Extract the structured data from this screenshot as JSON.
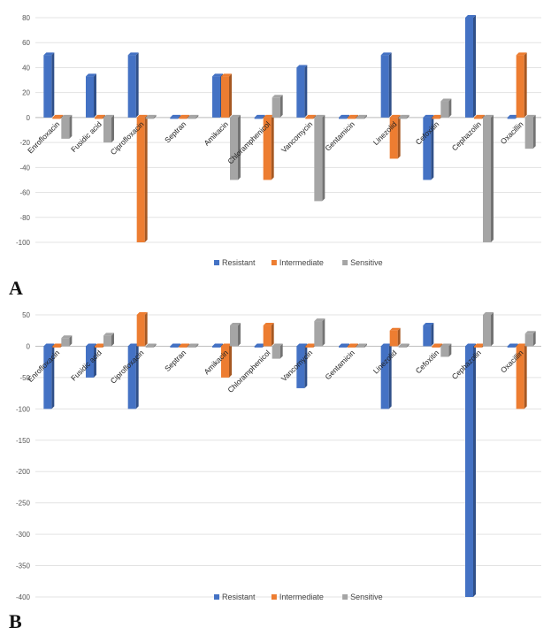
{
  "panels": [
    {
      "label": "A"
    },
    {
      "label": "B"
    }
  ],
  "colors": {
    "Resistant": "#4472C4",
    "Intermediate": "#ED7D31",
    "Sensitive": "#A5A5A5"
  },
  "chart_data": [
    {
      "type": "bar",
      "categories": [
        "Enrofloxacin",
        "Fusidic acid",
        "Ciprofloxacin",
        "Septran",
        "Amikacin",
        "Chloramphenicol",
        "Vancomycin",
        "Gentamicin",
        "Linezolid",
        "Cefoxitin",
        "Cephazolin",
        "Oxacillin"
      ],
      "series": [
        {
          "name": "Resistant",
          "values": [
            50,
            33,
            50,
            0,
            33,
            0,
            40,
            0,
            50,
            -50,
            80,
            0
          ]
        },
        {
          "name": "Intermediate",
          "values": [
            0,
            0,
            -100,
            0,
            33,
            -50,
            0,
            0,
            -33,
            0,
            0,
            50
          ]
        },
        {
          "name": "Sensitive",
          "values": [
            -17,
            -20,
            0,
            0,
            -50,
            16,
            -67,
            0,
            0,
            13,
            -100,
            -25
          ]
        }
      ],
      "yticks": [
        80,
        60,
        40,
        20,
        0,
        -20,
        -40,
        -60,
        -80,
        -100
      ],
      "ylim": [
        -100,
        80
      ],
      "grid": true,
      "legend": "bottom"
    },
    {
      "type": "bar",
      "categories": [
        "Enrofloxacin",
        "Fusidic acid",
        "Ciprofloxacin",
        "Septran",
        "Amikacin",
        "Chloramphenicol",
        "Vancomycin",
        "Gentamicin",
        "Linezolid",
        "Cefoxitin",
        "Cephazolin",
        "Oxacillin"
      ],
      "series": [
        {
          "name": "Resistant",
          "values": [
            -100,
            -50,
            -100,
            0,
            0,
            0,
            -67,
            0,
            -100,
            33,
            -400,
            0
          ]
        },
        {
          "name": "Intermediate",
          "values": [
            0,
            0,
            50,
            0,
            -50,
            33,
            0,
            0,
            25,
            0,
            0,
            -100
          ]
        },
        {
          "name": "Sensitive",
          "values": [
            13,
            17,
            0,
            0,
            33,
            -20,
            40,
            0,
            0,
            -17,
            50,
            20
          ]
        }
      ],
      "yticks": [
        50,
        0,
        -50,
        -100,
        -150,
        -200,
        -250,
        -300,
        -350,
        -400
      ],
      "ylim": [
        -400,
        50
      ],
      "grid": true,
      "legend": "bottom"
    }
  ]
}
